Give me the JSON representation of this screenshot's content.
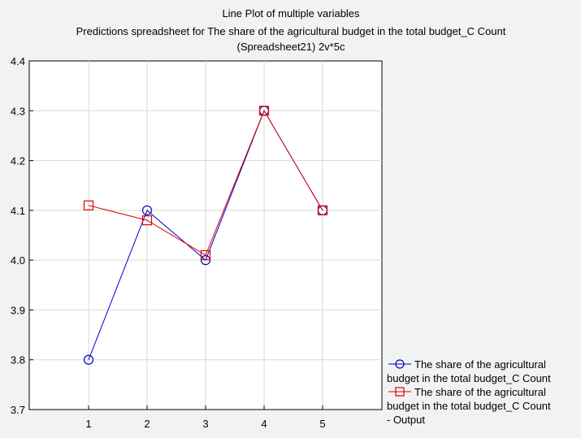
{
  "chart_data": {
    "type": "line",
    "title": "Line Plot of multiple variables",
    "subtitle_lines": [
      "Predictions spreadsheet for The share of the agricultural budget in the total budget_C Count",
      "(Spreadsheet21) 2v*5c"
    ],
    "xlabel": "",
    "ylabel": "",
    "categories": [
      "1",
      "2",
      "3",
      "4",
      "5"
    ],
    "ylim": [
      3.7,
      4.4
    ],
    "yticks": [
      "3.7",
      "3.8",
      "3.9",
      "4.0",
      "4.1",
      "4.2",
      "4.3",
      "4.4"
    ],
    "grid": true,
    "legend_position": "bottom-right",
    "series": [
      {
        "name_lines": [
          "The share of the agricultural",
          "budget in the total budget_C Count"
        ],
        "color": "#0000cc",
        "marker": "circle",
        "values": [
          3.8,
          4.1,
          4.0,
          4.3,
          4.1
        ]
      },
      {
        "name_lines": [
          "The share of the agricultural",
          "budget in the total budget_C Count",
          "- Output"
        ],
        "color": "#dd0000",
        "marker": "square",
        "values": [
          4.11,
          4.08,
          4.01,
          4.3,
          4.1
        ]
      }
    ]
  }
}
